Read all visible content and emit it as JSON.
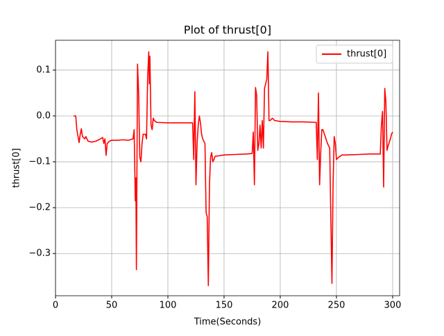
{
  "chart_data": {
    "type": "line",
    "title": "Plot of thrust[0]",
    "xlabel": "Time(Seconds)",
    "ylabel": "thrust[0]",
    "x": [
      16,
      18,
      19,
      21,
      22,
      23,
      24,
      26,
      27,
      29,
      32,
      36,
      40,
      42,
      43,
      44,
      45,
      46,
      48,
      50,
      55,
      60,
      65,
      69,
      70,
      71,
      71.5,
      72,
      72.5,
      73,
      74,
      75,
      76,
      77,
      78,
      80,
      81,
      82,
      83,
      83.5,
      84,
      85,
      86,
      87,
      88,
      90,
      100,
      110,
      120,
      122,
      123,
      124,
      125,
      126,
      127,
      128,
      129,
      130,
      131,
      132,
      133,
      134,
      135,
      136,
      137,
      138,
      139,
      140,
      141,
      142,
      145,
      150,
      160,
      170,
      175,
      176,
      177,
      178,
      179,
      180,
      181,
      182,
      183,
      184,
      185,
      186,
      188,
      189,
      190,
      191,
      193,
      195,
      200,
      210,
      220,
      232,
      233,
      234,
      235,
      236,
      237,
      238,
      240,
      242,
      244,
      245,
      246,
      247,
      248,
      249,
      250,
      252,
      255,
      260,
      270,
      280,
      289,
      290,
      291,
      292,
      293,
      294,
      295,
      296,
      298,
      299,
      300
    ],
    "series": [
      {
        "name": "thrust[0]",
        "color": "#ff0000",
        "values": [
          0.0,
          0.0,
          -0.03,
          -0.058,
          -0.04,
          -0.028,
          -0.045,
          -0.05,
          -0.045,
          -0.055,
          -0.057,
          -0.055,
          -0.05,
          -0.047,
          -0.06,
          -0.05,
          -0.086,
          -0.06,
          -0.055,
          -0.053,
          -0.053,
          -0.052,
          -0.053,
          -0.05,
          -0.03,
          -0.185,
          -0.135,
          -0.335,
          -0.1,
          0.113,
          0.05,
          -0.09,
          -0.1,
          -0.06,
          -0.04,
          -0.04,
          -0.05,
          0.085,
          0.14,
          0.07,
          0.13,
          -0.02,
          -0.03,
          -0.005,
          -0.01,
          -0.014,
          -0.015,
          -0.015,
          -0.015,
          -0.015,
          -0.095,
          0.053,
          -0.15,
          -0.06,
          -0.02,
          0.0,
          -0.015,
          -0.04,
          -0.05,
          -0.055,
          -0.06,
          -0.21,
          -0.22,
          -0.37,
          -0.15,
          -0.09,
          -0.08,
          -0.1,
          -0.095,
          -0.088,
          -0.087,
          -0.085,
          -0.084,
          -0.083,
          -0.082,
          -0.035,
          -0.15,
          0.062,
          0.045,
          -0.075,
          -0.06,
          -0.02,
          -0.07,
          -0.01,
          -0.07,
          0.06,
          0.08,
          0.14,
          -0.01,
          -0.01,
          -0.005,
          -0.01,
          -0.012,
          -0.013,
          -0.013,
          -0.014,
          -0.095,
          0.05,
          -0.15,
          -0.08,
          -0.03,
          -0.03,
          -0.045,
          -0.06,
          -0.07,
          -0.22,
          -0.365,
          -0.15,
          -0.045,
          -0.06,
          -0.095,
          -0.09,
          -0.085,
          -0.085,
          -0.084,
          -0.083,
          -0.083,
          -0.02,
          0.01,
          -0.155,
          0.06,
          0.03,
          -0.075,
          -0.065,
          -0.05,
          -0.04,
          -0.035
        ]
      }
    ],
    "xlim": [
      0,
      306.2
    ],
    "xticks": [
      0,
      50,
      100,
      150,
      200,
      250,
      300
    ],
    "ylim": [
      -0.392,
      0.165
    ],
    "yticks": [
      {
        "value": -0.3,
        "label": "−0.3"
      },
      {
        "value": -0.2,
        "label": "−0.2"
      },
      {
        "value": -0.1,
        "label": "−0.1"
      },
      {
        "value": 0,
        "label": "0.0"
      },
      0.1
    ],
    "grid": true,
    "legend": "upper right"
  }
}
